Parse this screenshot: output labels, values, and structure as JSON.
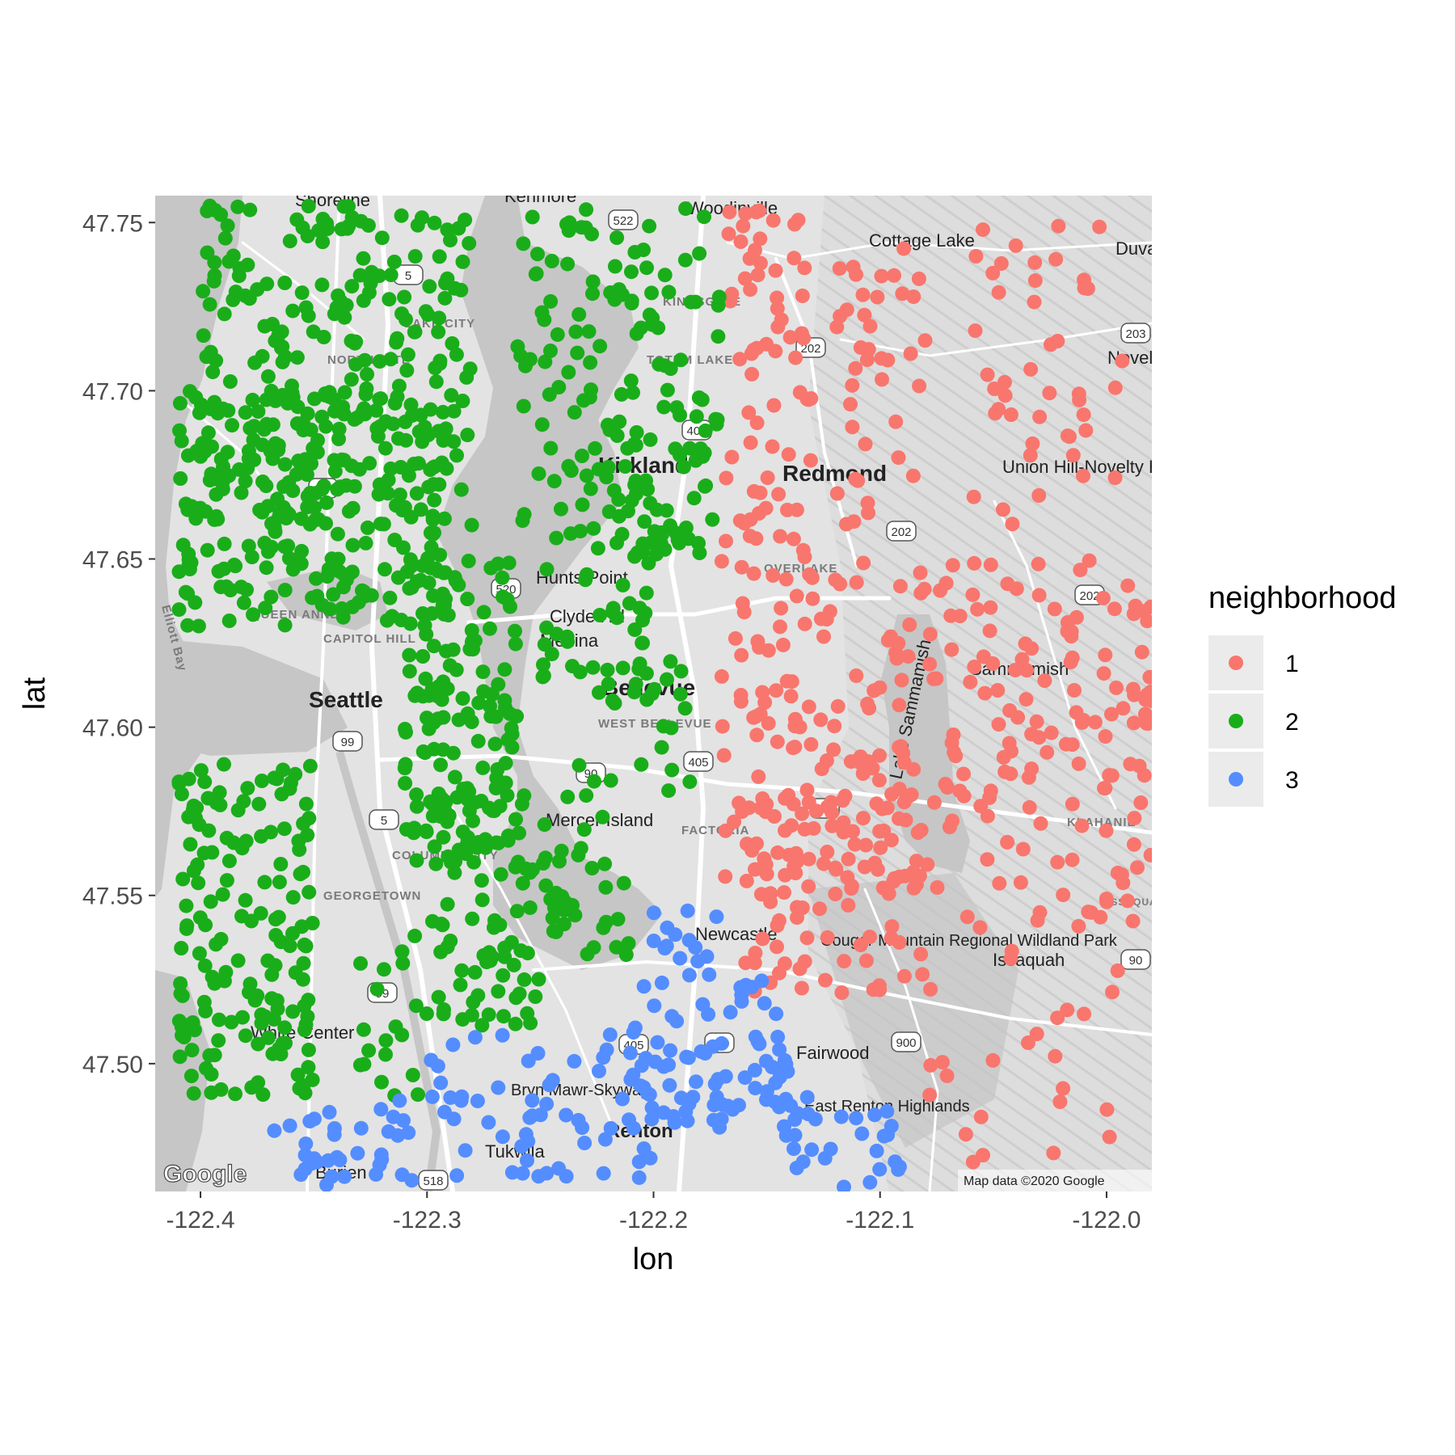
{
  "chart_data": {
    "type": "scatter",
    "title": "",
    "xlabel": "lon",
    "ylabel": "lat",
    "xlim": [
      -122.42,
      -121.98
    ],
    "ylim": [
      47.462,
      47.758
    ],
    "x_ticks": [
      -122.4,
      -122.3,
      -122.2,
      -122.1,
      -122.0
    ],
    "x_tick_labels": [
      "-122.4",
      "-122.3",
      "-122.2",
      "-122.1",
      "-122.0"
    ],
    "y_ticks": [
      47.5,
      47.55,
      47.6,
      47.65,
      47.7,
      47.75
    ],
    "y_tick_labels": [
      "47.50",
      "47.55",
      "47.60",
      "47.65",
      "47.70",
      "47.75"
    ],
    "legend": {
      "title": "neighborhood",
      "position": "right",
      "entries": [
        {
          "label": "1",
          "color": "#F8766D"
        },
        {
          "label": "2",
          "color": "#1AAD1A"
        },
        {
          "label": "3",
          "color": "#548DFF"
        }
      ]
    },
    "series": [
      {
        "name": "1",
        "color": "#F8766D",
        "clusters": [
          {
            "lon": [
              -122.17,
              -122.13
            ],
            "lat": [
              47.64,
              47.755
            ],
            "n": 70
          },
          {
            "lon": [
              -122.12,
              -122.08
            ],
            "lat": [
              47.66,
              47.745
            ],
            "n": 40
          },
          {
            "lon": [
              -122.06,
              -121.99
            ],
            "lat": [
              47.66,
              47.75
            ],
            "n": 45
          },
          {
            "lon": [
              -122.17,
              -122.08
            ],
            "lat": [
              47.55,
              47.65
            ],
            "n": 140
          },
          {
            "lon": [
              -122.08,
              -121.98
            ],
            "lat": [
              47.54,
              47.65
            ],
            "n": 150
          },
          {
            "lon": [
              -122.16,
              -122.08
            ],
            "lat": [
              47.52,
              47.58
            ],
            "n": 80
          },
          {
            "lon": [
              -122.08,
              -121.99
            ],
            "lat": [
              47.47,
              47.54
            ],
            "n": 25
          }
        ]
      },
      {
        "name": "2",
        "color": "#1AAD1A",
        "clusters": [
          {
            "lon": [
              -122.4,
              -122.28
            ],
            "lat": [
              47.66,
              47.755
            ],
            "n": 240
          },
          {
            "lon": [
              -122.41,
              -122.29
            ],
            "lat": [
              47.63,
              47.7
            ],
            "n": 220
          },
          {
            "lon": [
              -122.31,
              -122.26
            ],
            "lat": [
              47.56,
              47.65
            ],
            "n": 130
          },
          {
            "lon": [
              -122.41,
              -122.35
            ],
            "lat": [
              47.49,
              47.59
            ],
            "n": 160
          },
          {
            "lon": [
              -122.3,
              -122.25
            ],
            "lat": [
              47.51,
              47.58
            ],
            "n": 90
          },
          {
            "lon": [
              -122.26,
              -122.17
            ],
            "lat": [
              47.65,
              47.755
            ],
            "n": 130
          },
          {
            "lon": [
              -122.22,
              -122.17
            ],
            "lat": [
              47.65,
              47.7
            ],
            "n": 40
          },
          {
            "lon": [
              -122.25,
              -122.2
            ],
            "lat": [
              47.61,
              47.65
            ],
            "n": 35
          },
          {
            "lon": [
              -122.22,
              -122.18
            ],
            "lat": [
              47.58,
              47.62
            ],
            "n": 20
          },
          {
            "lon": [
              -122.25,
              -122.21
            ],
            "lat": [
              47.53,
              47.59
            ],
            "n": 40
          },
          {
            "lon": [
              -122.33,
              -122.3
            ],
            "lat": [
              47.49,
              47.54
            ],
            "n": 20
          }
        ]
      },
      {
        "name": "3",
        "color": "#548DFF",
        "clusters": [
          {
            "lon": [
              -122.37,
              -122.3
            ],
            "lat": [
              47.463,
              47.49
            ],
            "n": 35
          },
          {
            "lon": [
              -122.3,
              -122.2
            ],
            "lat": [
              47.465,
              47.51
            ],
            "n": 60
          },
          {
            "lon": [
              -122.21,
              -122.14
            ],
            "lat": [
              47.48,
              47.525
            ],
            "n": 80
          },
          {
            "lon": [
              -122.2,
              -122.17
            ],
            "lat": [
              47.525,
              47.548
            ],
            "n": 15
          },
          {
            "lon": [
              -122.15,
              -122.09
            ],
            "lat": [
              47.463,
              47.49
            ],
            "n": 30
          }
        ]
      }
    ]
  },
  "map": {
    "labels": [
      "Kenmore",
      "Woodinville",
      "Cottage Lake",
      "Duvall",
      "Shoreline",
      "LAKE CITY",
      "NORTHGATE",
      "KINGSGATE",
      "TOTEM LAKE",
      "Novelty",
      "Union Hill-Novelty Hill",
      "Kirkland",
      "Redmond",
      "Hunts Point",
      "OVERLAKE",
      "Clyde Hill",
      "Medina",
      "QUEEN ANNE",
      "CAPITOL HILL",
      "Elliott Bay",
      "Bellevue",
      "Seattle",
      "WEST BELLEVUE",
      "Lake Sammamish",
      "Sammamish",
      "Mercer Island",
      "FACTORIA",
      "COLUMBIA CITY",
      "GEORGETOWN",
      "Newcastle",
      "Cougar Mountain Regional Wildland Park",
      "Issaquah",
      "White Center",
      "Bryn Mawr-Skyway",
      "Renton",
      "Fairwood",
      "East Renton Highlands",
      "Tukwila",
      "Burien",
      "KLAHANIE",
      "ISSAQUAH HIGHLANDS"
    ],
    "shields": [
      "522",
      "5",
      "202",
      "405",
      "99",
      "520",
      "202",
      "202",
      "203",
      "99",
      "90",
      "405",
      "90",
      "5",
      "99",
      "405",
      "900",
      "518",
      "900",
      "90"
    ],
    "attribution": "Map data ©2020 Google",
    "logo_text": "Google"
  }
}
